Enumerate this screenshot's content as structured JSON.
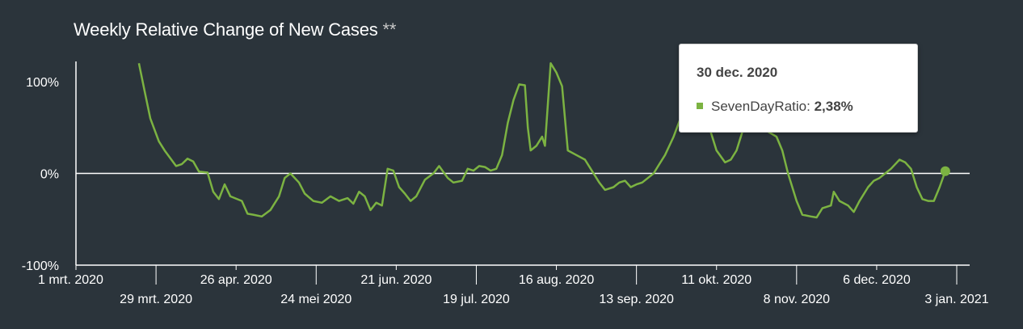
{
  "header": {
    "title": "Weekly Relative Change of New Cases",
    "title_suffix": "**"
  },
  "tooltip": {
    "date": "30 dec. 2020",
    "series_name": "SevenDayRatio",
    "value": "2,38%"
  },
  "colors": {
    "background": "#2b343b",
    "line": "#7cb342",
    "axis": "#ffffff",
    "text": "#ffffff"
  },
  "chart_data": {
    "type": "line",
    "title": "Weekly Relative Change of New Cases **",
    "xlabel": "",
    "ylabel": "",
    "x_range": [
      "2020-03-01",
      "2021-01-03"
    ],
    "ylim": [
      -100,
      100
    ],
    "y_ticks": [
      {
        "value": 100,
        "label": "100%"
      },
      {
        "value": 0,
        "label": "0%"
      },
      {
        "value": -100,
        "label": "-100%"
      }
    ],
    "x_ticks": [
      {
        "date": "2020-03-01",
        "label": "1 mrt. 2020",
        "row": 1
      },
      {
        "date": "2020-03-29",
        "label": "29 mrt. 2020",
        "row": 2
      },
      {
        "date": "2020-04-26",
        "label": "26 apr. 2020",
        "row": 1
      },
      {
        "date": "2020-05-24",
        "label": "24 mei 2020",
        "row": 2
      },
      {
        "date": "2020-06-21",
        "label": "21 jun. 2020",
        "row": 1
      },
      {
        "date": "2020-07-19",
        "label": "19 jul. 2020",
        "row": 2
      },
      {
        "date": "2020-08-16",
        "label": "16 aug. 2020",
        "row": 1
      },
      {
        "date": "2020-09-13",
        "label": "13 sep. 2020",
        "row": 2
      },
      {
        "date": "2020-10-11",
        "label": "11 okt. 2020",
        "row": 1
      },
      {
        "date": "2020-11-08",
        "label": "8 nov. 2020",
        "row": 2
      },
      {
        "date": "2020-12-06",
        "label": "6 dec. 2020",
        "row": 1
      },
      {
        "date": "2021-01-03",
        "label": "3 jan. 2021",
        "row": 2
      }
    ],
    "grid": false,
    "series": [
      {
        "name": "SevenDayRatio",
        "color": "#7cb342",
        "points": [
          [
            "2020-03-23",
            120
          ],
          [
            "2020-03-25",
            90
          ],
          [
            "2020-03-27",
            60
          ],
          [
            "2020-03-30",
            35
          ],
          [
            "2020-04-01",
            25
          ],
          [
            "2020-04-05",
            8
          ],
          [
            "2020-04-07",
            10
          ],
          [
            "2020-04-09",
            16
          ],
          [
            "2020-04-11",
            13
          ],
          [
            "2020-04-13",
            2
          ],
          [
            "2020-04-16",
            1
          ],
          [
            "2020-04-18",
            -20
          ],
          [
            "2020-04-20",
            -28
          ],
          [
            "2020-04-22",
            -12
          ],
          [
            "2020-04-24",
            -25
          ],
          [
            "2020-04-28",
            -30
          ],
          [
            "2020-04-30",
            -44
          ],
          [
            "2020-05-02",
            -45
          ],
          [
            "2020-05-05",
            -47
          ],
          [
            "2020-05-08",
            -40
          ],
          [
            "2020-05-11",
            -25
          ],
          [
            "2020-05-13",
            -5
          ],
          [
            "2020-05-15",
            0
          ],
          [
            "2020-05-18",
            -10
          ],
          [
            "2020-05-20",
            -22
          ],
          [
            "2020-05-23",
            -30
          ],
          [
            "2020-05-26",
            -32
          ],
          [
            "2020-05-29",
            -25
          ],
          [
            "2020-06-01",
            -30
          ],
          [
            "2020-06-04",
            -27
          ],
          [
            "2020-06-06",
            -33
          ],
          [
            "2020-06-08",
            -20
          ],
          [
            "2020-06-10",
            -25
          ],
          [
            "2020-06-12",
            -40
          ],
          [
            "2020-06-14",
            -32
          ],
          [
            "2020-06-16",
            -35
          ],
          [
            "2020-06-18",
            5
          ],
          [
            "2020-06-20",
            3
          ],
          [
            "2020-06-22",
            -15
          ],
          [
            "2020-06-24",
            -22
          ],
          [
            "2020-06-26",
            -30
          ],
          [
            "2020-06-28",
            -25
          ],
          [
            "2020-07-01",
            -7
          ],
          [
            "2020-07-04",
            0
          ],
          [
            "2020-07-06",
            8
          ],
          [
            "2020-07-09",
            -5
          ],
          [
            "2020-07-11",
            -10
          ],
          [
            "2020-07-14",
            -8
          ],
          [
            "2020-07-16",
            5
          ],
          [
            "2020-07-18",
            3
          ],
          [
            "2020-07-20",
            8
          ],
          [
            "2020-07-22",
            7
          ],
          [
            "2020-07-24",
            3
          ],
          [
            "2020-07-26",
            5
          ],
          [
            "2020-07-28",
            20
          ],
          [
            "2020-07-30",
            55
          ],
          [
            "2020-08-01",
            80
          ],
          [
            "2020-08-03",
            97
          ],
          [
            "2020-08-05",
            96
          ],
          [
            "2020-08-06",
            50
          ],
          [
            "2020-08-07",
            25
          ],
          [
            "2020-08-09",
            30
          ],
          [
            "2020-08-11",
            40
          ],
          [
            "2020-08-12",
            30
          ],
          [
            "2020-08-14",
            120
          ],
          [
            "2020-08-16",
            110
          ],
          [
            "2020-08-18",
            95
          ],
          [
            "2020-08-20",
            25
          ],
          [
            "2020-08-23",
            20
          ],
          [
            "2020-08-26",
            15
          ],
          [
            "2020-08-28",
            5
          ],
          [
            "2020-08-31",
            -10
          ],
          [
            "2020-09-02",
            -18
          ],
          [
            "2020-09-05",
            -15
          ],
          [
            "2020-09-07",
            -10
          ],
          [
            "2020-09-09",
            -8
          ],
          [
            "2020-09-11",
            -15
          ],
          [
            "2020-09-13",
            -12
          ],
          [
            "2020-09-15",
            -10
          ],
          [
            "2020-09-17",
            -5
          ],
          [
            "2020-09-19",
            0
          ],
          [
            "2020-09-21",
            10
          ],
          [
            "2020-09-23",
            20
          ],
          [
            "2020-09-26",
            40
          ],
          [
            "2020-09-29",
            65
          ],
          [
            "2020-10-02",
            78
          ],
          [
            "2020-10-04",
            82
          ],
          [
            "2020-10-06",
            65
          ],
          [
            "2020-10-09",
            45
          ],
          [
            "2020-10-11",
            25
          ],
          [
            "2020-10-14",
            12
          ],
          [
            "2020-10-16",
            15
          ],
          [
            "2020-10-18",
            25
          ],
          [
            "2020-10-20",
            45
          ],
          [
            "2020-10-21",
            60
          ],
          [
            "2020-11-01",
            40
          ],
          [
            "2020-11-03",
            25
          ],
          [
            "2020-11-05",
            0
          ],
          [
            "2020-11-08",
            -30
          ],
          [
            "2020-11-10",
            -45
          ],
          [
            "2020-11-13",
            -47
          ],
          [
            "2020-11-15",
            -48
          ],
          [
            "2020-11-17",
            -38
          ],
          [
            "2020-11-20",
            -35
          ],
          [
            "2020-11-21",
            -20
          ],
          [
            "2020-11-23",
            -30
          ],
          [
            "2020-11-26",
            -35
          ],
          [
            "2020-11-28",
            -42
          ],
          [
            "2020-11-30",
            -30
          ],
          [
            "2020-12-03",
            -15
          ],
          [
            "2020-12-05",
            -8
          ],
          [
            "2020-12-07",
            -5
          ],
          [
            "2020-12-09",
            0
          ],
          [
            "2020-12-11",
            5
          ],
          [
            "2020-12-14",
            15
          ],
          [
            "2020-12-16",
            12
          ],
          [
            "2020-12-18",
            5
          ],
          [
            "2020-12-20",
            -15
          ],
          [
            "2020-12-22",
            -28
          ],
          [
            "2020-12-24",
            -30
          ],
          [
            "2020-12-26",
            -30
          ],
          [
            "2020-12-28",
            -15
          ],
          [
            "2020-12-30",
            2.38
          ]
        ]
      }
    ]
  }
}
